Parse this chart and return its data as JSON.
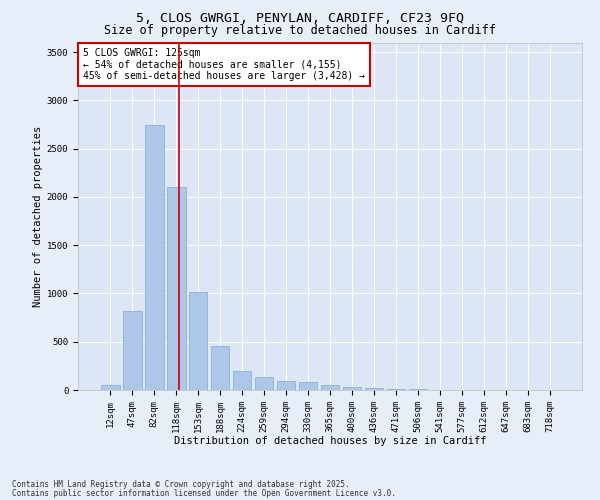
{
  "title_line1": "5, CLOS GWRGI, PENYLAN, CARDIFF, CF23 9FQ",
  "title_line2": "Size of property relative to detached houses in Cardiff",
  "xlabel": "Distribution of detached houses by size in Cardiff",
  "ylabel": "Number of detached properties",
  "categories": [
    "12sqm",
    "47sqm",
    "82sqm",
    "118sqm",
    "153sqm",
    "188sqm",
    "224sqm",
    "259sqm",
    "294sqm",
    "330sqm",
    "365sqm",
    "400sqm",
    "436sqm",
    "471sqm",
    "506sqm",
    "541sqm",
    "577sqm",
    "612sqm",
    "647sqm",
    "683sqm",
    "718sqm"
  ],
  "values": [
    50,
    820,
    2750,
    2100,
    1020,
    460,
    200,
    130,
    95,
    80,
    55,
    30,
    20,
    10,
    8,
    5,
    3,
    2,
    2,
    1,
    1
  ],
  "bar_color": "#aec6e8",
  "bar_edge_color": "#7aadd4",
  "vline_color": "#cc0000",
  "vline_x": 3.15,
  "annotation_text": "5 CLOS GWRGI: 125sqm\n← 54% of detached houses are smaller (4,155)\n45% of semi-detached houses are larger (3,428) →",
  "annotation_box_color": "#ffffff",
  "annotation_box_edge": "#cc0000",
  "ylim": [
    0,
    3600
  ],
  "yticks": [
    0,
    500,
    1000,
    1500,
    2000,
    2500,
    3000,
    3500
  ],
  "bg_color": "#e8eef7",
  "plot_bg_color": "#dce6f5",
  "footer_line1": "Contains HM Land Registry data © Crown copyright and database right 2025.",
  "footer_line2": "Contains public sector information licensed under the Open Government Licence v3.0.",
  "title_fontsize": 9.5,
  "subtitle_fontsize": 8.5,
  "axis_label_fontsize": 7.5,
  "tick_fontsize": 6.5,
  "annotation_fontsize": 7,
  "footer_fontsize": 5.5
}
